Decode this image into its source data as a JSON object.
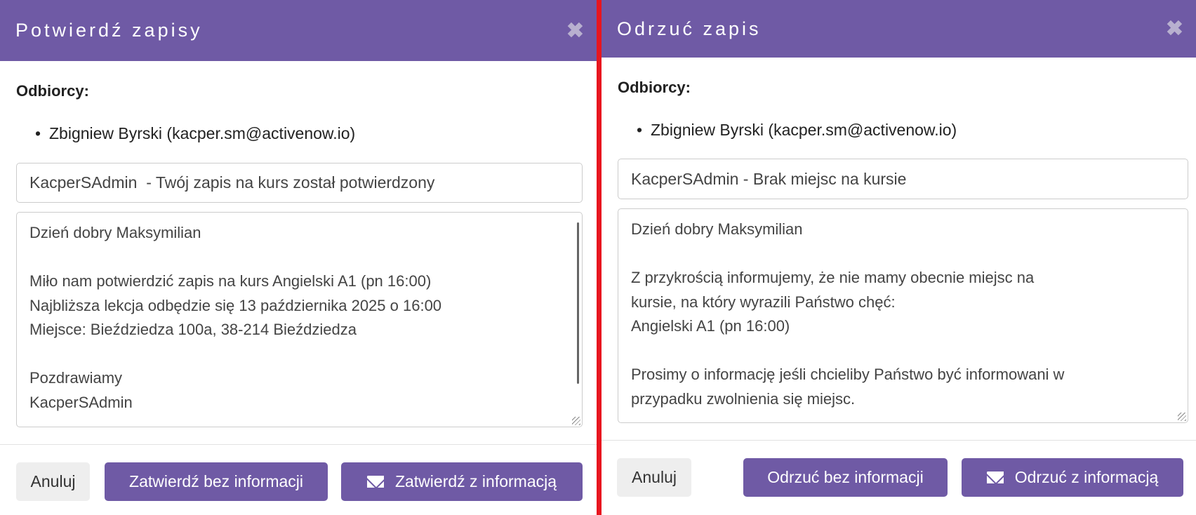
{
  "confirm": {
    "title": "Potwierdź zapisy",
    "recipients_label": "Odbiorcy:",
    "recipients": [
      "Zbigniew Byrski (kacper.sm@activenow.io)"
    ],
    "subject": "KacperSAdmin  - Twój zapis na kurs został potwierdzony",
    "body": "Dzień dobry Maksymilian\n\nMiło nam potwierdzić zapis na kurs Angielski A1 (pn 16:00)\nNajbliższa lekcja odbędzie się 13 października 2025 o 16:00\nMiejsce: Bieździedza 100a, 38-214 Bieździedza\n\nPozdrawiamy\nKacperSAdmin",
    "cancel": "Anuluj",
    "without_info": "Zatwierdź bez informacji",
    "with_info": "Zatwierdź z informacją"
  },
  "reject": {
    "title": "Odrzuć zapis",
    "recipients_label": "Odbiorcy:",
    "recipients": [
      "Zbigniew Byrski (kacper.sm@activenow.io)"
    ],
    "subject": "KacperSAdmin - Brak miejsc na kursie",
    "body": "Dzień dobry Maksymilian\n\nZ przykrością informujemy, że nie mamy obecnie miejsc na\nkursie, na który wyrazili Państwo chęć:\nAngielski A1 (pn 16:00)\n\nProsimy o informację jeśli chcieliby Państwo być informowani w\nprzypadku zwolnienia się miejsc.",
    "cancel": "Anuluj",
    "without_info": "Odrzuć bez informacji",
    "with_info": "Odrzuć z informacją"
  },
  "colors": {
    "accent": "#6f5aa5",
    "separator": "#e8161f"
  }
}
